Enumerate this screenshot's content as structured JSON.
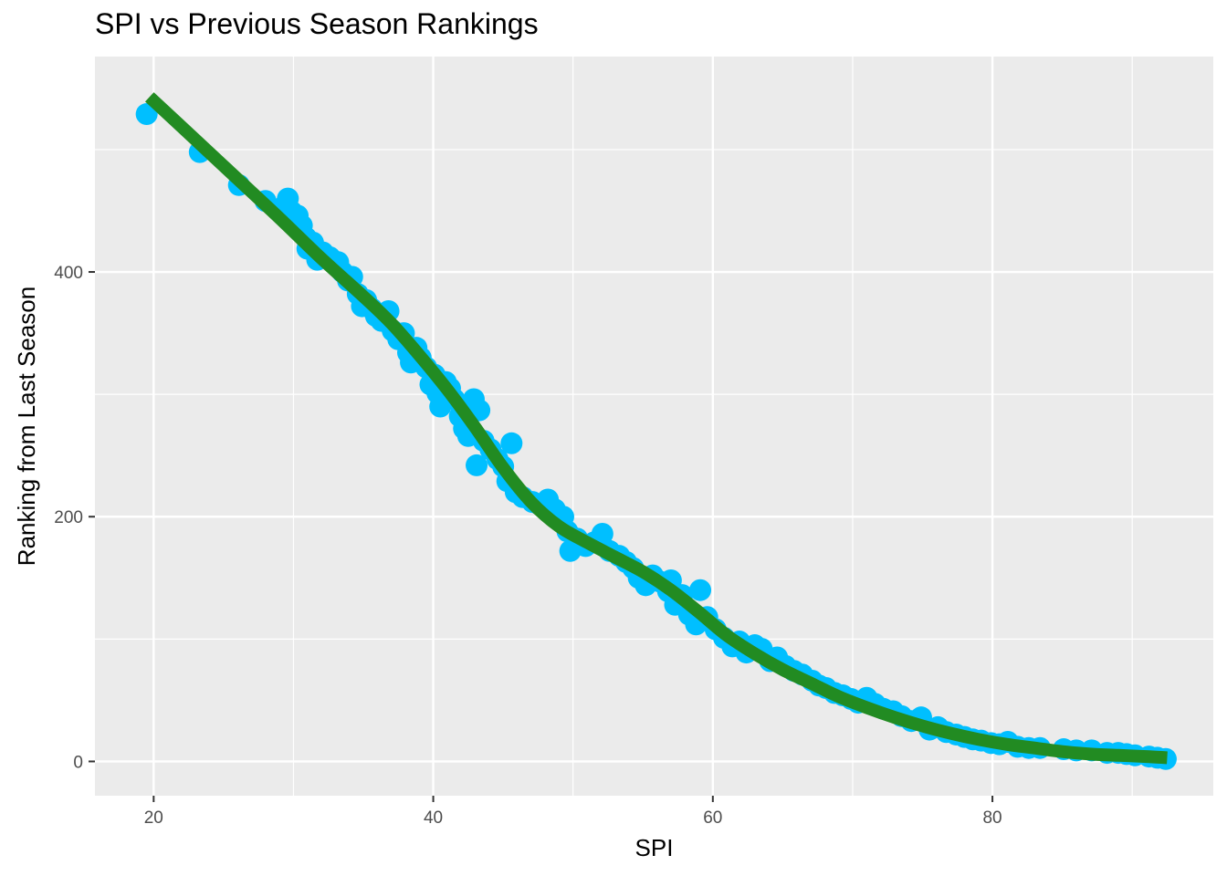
{
  "chart_data": {
    "type": "scatter",
    "title": "SPI vs Previous Season Rankings",
    "xlabel": "SPI",
    "ylabel": "Ranking from Last Season",
    "xlim": [
      15.8,
      95.8
    ],
    "ylim": [
      -28,
      576
    ],
    "x_ticks": [
      20,
      40,
      60,
      80
    ],
    "y_ticks": [
      0,
      200,
      400
    ],
    "grid": true,
    "legend": "none",
    "colors": {
      "panel": "#EBEBEB",
      "grid": "#FFFFFF",
      "points": "#00BFFF",
      "smooth_line": "#228B22"
    },
    "points": [
      [
        19.5,
        529
      ],
      [
        23.3,
        498
      ],
      [
        26.1,
        471
      ],
      [
        28.0,
        458
      ],
      [
        29.1,
        452
      ],
      [
        29.6,
        460
      ],
      [
        29.9,
        449
      ],
      [
        30.3,
        446
      ],
      [
        30.6,
        438
      ],
      [
        30.9,
        428
      ],
      [
        31.0,
        419
      ],
      [
        31.4,
        424
      ],
      [
        31.7,
        410
      ],
      [
        32.1,
        416
      ],
      [
        32.6,
        412
      ],
      [
        33.2,
        408
      ],
      [
        33.5,
        400
      ],
      [
        33.9,
        393
      ],
      [
        34.2,
        396
      ],
      [
        34.6,
        382
      ],
      [
        34.9,
        372
      ],
      [
        35.2,
        377
      ],
      [
        35.6,
        370
      ],
      [
        35.9,
        364
      ],
      [
        36.3,
        360
      ],
      [
        36.8,
        368
      ],
      [
        37.1,
        352
      ],
      [
        37.5,
        345
      ],
      [
        37.9,
        350
      ],
      [
        38.2,
        334
      ],
      [
        38.4,
        326
      ],
      [
        38.8,
        338
      ],
      [
        39.1,
        330
      ],
      [
        39.5,
        322
      ],
      [
        39.8,
        308
      ],
      [
        40.1,
        316
      ],
      [
        40.3,
        301
      ],
      [
        40.5,
        290
      ],
      [
        40.9,
        310
      ],
      [
        41.2,
        305
      ],
      [
        41.5,
        296
      ],
      [
        41.9,
        282
      ],
      [
        42.2,
        272
      ],
      [
        42.5,
        266
      ],
      [
        42.9,
        296
      ],
      [
        43.1,
        242
      ],
      [
        43.3,
        287
      ],
      [
        43.6,
        262
      ],
      [
        44.1,
        255
      ],
      [
        44.6,
        247
      ],
      [
        45.0,
        241
      ],
      [
        45.3,
        229
      ],
      [
        45.6,
        260
      ],
      [
        45.9,
        220
      ],
      [
        46.4,
        216
      ],
      [
        47.1,
        212
      ],
      [
        47.6,
        210
      ],
      [
        48.2,
        214
      ],
      [
        48.7,
        206
      ],
      [
        49.3,
        200
      ],
      [
        49.6,
        188
      ],
      [
        49.8,
        172
      ],
      [
        50.3,
        182
      ],
      [
        50.9,
        176
      ],
      [
        51.5,
        179
      ],
      [
        52.1,
        186
      ],
      [
        52.6,
        172
      ],
      [
        53.3,
        168
      ],
      [
        53.8,
        163
      ],
      [
        54.3,
        158
      ],
      [
        54.7,
        150
      ],
      [
        55.2,
        144
      ],
      [
        55.7,
        152
      ],
      [
        56.2,
        147
      ],
      [
        56.8,
        139
      ],
      [
        57.0,
        148
      ],
      [
        57.3,
        128
      ],
      [
        57.8,
        136
      ],
      [
        58.3,
        120
      ],
      [
        58.8,
        112
      ],
      [
        59.1,
        140
      ],
      [
        59.6,
        118
      ],
      [
        60.2,
        108
      ],
      [
        60.8,
        101
      ],
      [
        61.4,
        94
      ],
      [
        61.9,
        98
      ],
      [
        62.4,
        89
      ],
      [
        63.0,
        95
      ],
      [
        63.5,
        92
      ],
      [
        64.1,
        82
      ],
      [
        64.6,
        85
      ],
      [
        65.2,
        78
      ],
      [
        65.8,
        74
      ],
      [
        66.4,
        71
      ],
      [
        67.1,
        66
      ],
      [
        67.6,
        62
      ],
      [
        68.1,
        60
      ],
      [
        68.7,
        56
      ],
      [
        69.3,
        54
      ],
      [
        69.9,
        51
      ],
      [
        70.4,
        48
      ],
      [
        71.0,
        52
      ],
      [
        71.6,
        47
      ],
      [
        72.2,
        43
      ],
      [
        72.9,
        41
      ],
      [
        73.5,
        37
      ],
      [
        74.2,
        33
      ],
      [
        74.9,
        36
      ],
      [
        75.5,
        26
      ],
      [
        76.1,
        28
      ],
      [
        76.7,
        24
      ],
      [
        77.4,
        22
      ],
      [
        78.0,
        20
      ],
      [
        78.6,
        18
      ],
      [
        79.2,
        17
      ],
      [
        79.9,
        15
      ],
      [
        80.5,
        14
      ],
      [
        81.1,
        16
      ],
      [
        81.8,
        12
      ],
      [
        82.6,
        11
      ],
      [
        83.4,
        11
      ],
      [
        85.1,
        10
      ],
      [
        86.0,
        9
      ],
      [
        87.1,
        9
      ],
      [
        88.2,
        7
      ],
      [
        89.0,
        7
      ],
      [
        89.6,
        6
      ],
      [
        90.2,
        5
      ],
      [
        91.2,
        4
      ],
      [
        91.8,
        3
      ],
      [
        92.4,
        2
      ]
    ],
    "smooth": [
      [
        19.7,
        543
      ],
      [
        23.0,
        508
      ],
      [
        26.0,
        476
      ],
      [
        29.0,
        444
      ],
      [
        32.0,
        411
      ],
      [
        35.0,
        380
      ],
      [
        37.0,
        358
      ],
      [
        39.0,
        332
      ],
      [
        41.0,
        304
      ],
      [
        43.0,
        273
      ],
      [
        45.0,
        240
      ],
      [
        47.0,
        212
      ],
      [
        49.0,
        192
      ],
      [
        51.0,
        179
      ],
      [
        53.0,
        167
      ],
      [
        55.0,
        155
      ],
      [
        57.0,
        140
      ],
      [
        59.0,
        122
      ],
      [
        61.0,
        103
      ],
      [
        63.0,
        88
      ],
      [
        65.0,
        75
      ],
      [
        67.0,
        64
      ],
      [
        69.0,
        53
      ],
      [
        71.0,
        44
      ],
      [
        73.0,
        36
      ],
      [
        75.0,
        29
      ],
      [
        77.0,
        23
      ],
      [
        79.0,
        18
      ],
      [
        81.0,
        14
      ],
      [
        83.0,
        11
      ],
      [
        85.0,
        8
      ],
      [
        87.0,
        6
      ],
      [
        89.0,
        5
      ],
      [
        91.0,
        4
      ],
      [
        92.5,
        3
      ]
    ]
  }
}
